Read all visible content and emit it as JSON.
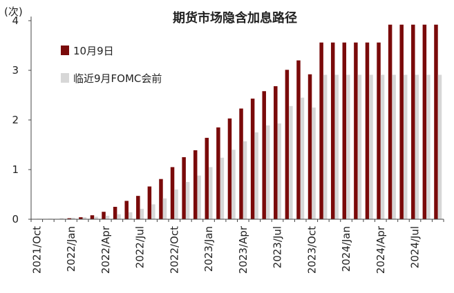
{
  "chart_data": {
    "type": "bar",
    "title": "期货市场隐含加息路径",
    "ylabel": "(次)",
    "ylim": [
      0,
      4
    ],
    "yticks": [
      "0",
      "1",
      "2",
      "3",
      "4"
    ],
    "x_tick_labels": [
      {
        "index": 0,
        "label": "2021/Oct"
      },
      {
        "index": 3,
        "label": "2022/Jan"
      },
      {
        "index": 6,
        "label": "2022/Apr"
      },
      {
        "index": 9,
        "label": "2022/Jul"
      },
      {
        "index": 12,
        "label": "2022/Oct"
      },
      {
        "index": 15,
        "label": "2023/Jan"
      },
      {
        "index": 18,
        "label": "2023/Apr"
      },
      {
        "index": 21,
        "label": "2023/Jul"
      },
      {
        "index": 24,
        "label": "2023/Oct"
      },
      {
        "index": 27,
        "label": "2024/Jan"
      },
      {
        "index": 30,
        "label": "2024/Apr"
      },
      {
        "index": 33,
        "label": "2024/Jul"
      }
    ],
    "legend_position": "top-left",
    "grid": false,
    "series": [
      {
        "name": "10月9日",
        "color": "#7a0a0a",
        "values": [
          0,
          0,
          0,
          0.02,
          0.04,
          0.08,
          0.15,
          0.25,
          0.37,
          0.47,
          0.66,
          0.81,
          1.05,
          1.25,
          1.39,
          1.64,
          1.85,
          2.03,
          2.23,
          2.43,
          2.58,
          2.68,
          3.01,
          3.2,
          2.92,
          3.56,
          3.56,
          3.56,
          3.56,
          3.56,
          3.56,
          3.92,
          3.92,
          3.92,
          3.92,
          3.92
        ]
      },
      {
        "name": "临近9月FOMC会前",
        "color": "#d7d7d7",
        "values": [
          0.01,
          0.01,
          0.02,
          0.03,
          0.04,
          0.05,
          0.07,
          0.1,
          0.14,
          0.21,
          0.3,
          0.42,
          0.6,
          0.75,
          0.88,
          1.05,
          1.24,
          1.4,
          1.57,
          1.75,
          1.89,
          1.93,
          2.28,
          2.45,
          2.25,
          2.91,
          2.91,
          2.91,
          2.91,
          2.91,
          2.91,
          2.91,
          2.91,
          2.91,
          2.91,
          2.91
        ]
      }
    ]
  }
}
